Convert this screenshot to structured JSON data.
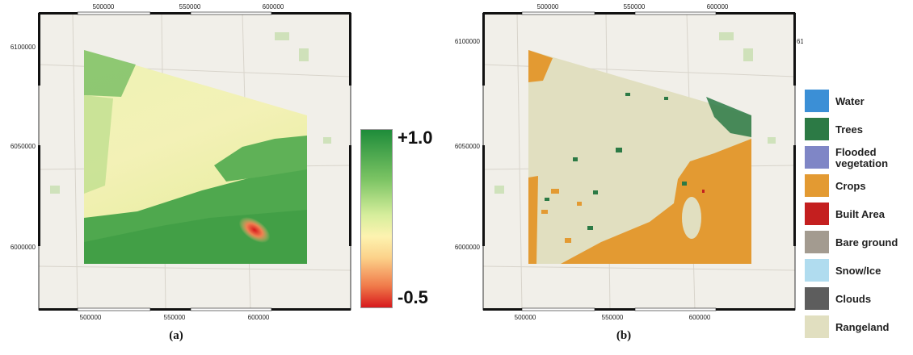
{
  "panel_a": {
    "caption": "(a)",
    "x_ticks": [
      "500000",
      "550000",
      "600000"
    ],
    "y_ticks": [
      "6100000",
      "6050000",
      "6000000"
    ],
    "colorbar": {
      "max_label": "+1.0",
      "min_label": "-0.5",
      "max_value": 1.0,
      "min_value": -0.5
    }
  },
  "panel_b": {
    "caption": "(b)",
    "x_ticks": [
      "500000",
      "550000",
      "600000"
    ],
    "y_ticks": [
      "6100000",
      "6050000",
      "6000000"
    ],
    "legend": [
      {
        "label": "Water",
        "color": "#3b8fd6"
      },
      {
        "label": "Trees",
        "color": "#2c7a45"
      },
      {
        "label": "Flooded vegetation",
        "color": "#7f86c6"
      },
      {
        "label": "Crops",
        "color": "#e39a32"
      },
      {
        "label": "Built Area",
        "color": "#c41f1f"
      },
      {
        "label": "Bare ground",
        "color": "#a39b90"
      },
      {
        "label": "Snow/Ice",
        "color": "#b0dcef"
      },
      {
        "label": "Clouds",
        "color": "#5d5d5d"
      },
      {
        "label": "Rangeland",
        "color": "#e1dfc0"
      }
    ]
  }
}
